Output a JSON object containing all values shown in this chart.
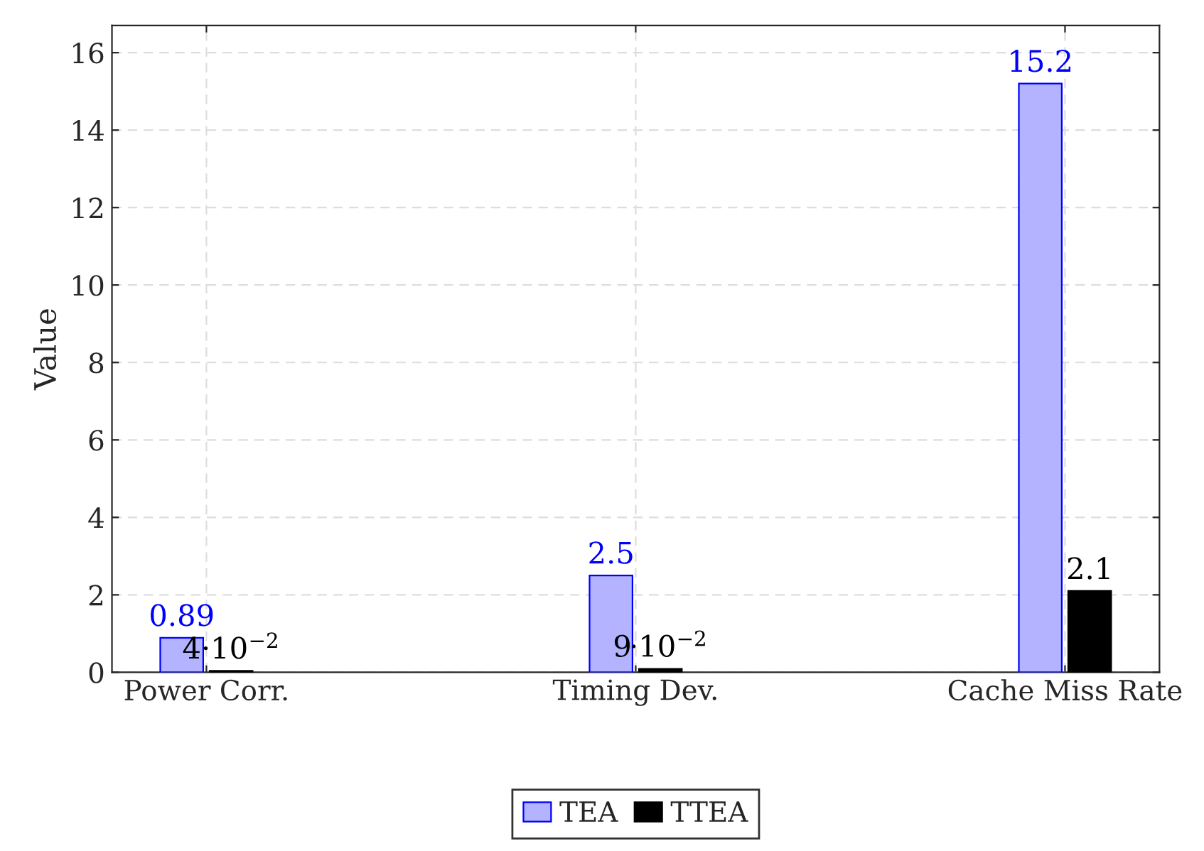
{
  "chart_data": {
    "type": "bar",
    "ylabel": "Value",
    "categories": [
      "Power Corr.",
      "Timing Dev.",
      "Cache Miss Rate"
    ],
    "series": [
      {
        "name": "TEA",
        "color": "#b3b3ff",
        "values": [
          0.89,
          2.5,
          15.2
        ],
        "value_labels": [
          "0.89",
          "2.5",
          "15.2"
        ]
      },
      {
        "name": "TTEA",
        "color": "#000000",
        "values": [
          0.04,
          0.09,
          2.1
        ],
        "value_labels": [
          "4·10$^{−2}$",
          "9·10$^{−2}$",
          "2.1"
        ]
      }
    ],
    "ylim": [
      0,
      16.7
    ],
    "yticks": [
      0,
      2,
      4,
      6,
      8,
      10,
      12,
      14,
      16
    ],
    "grid": true,
    "legend": "bottom"
  }
}
